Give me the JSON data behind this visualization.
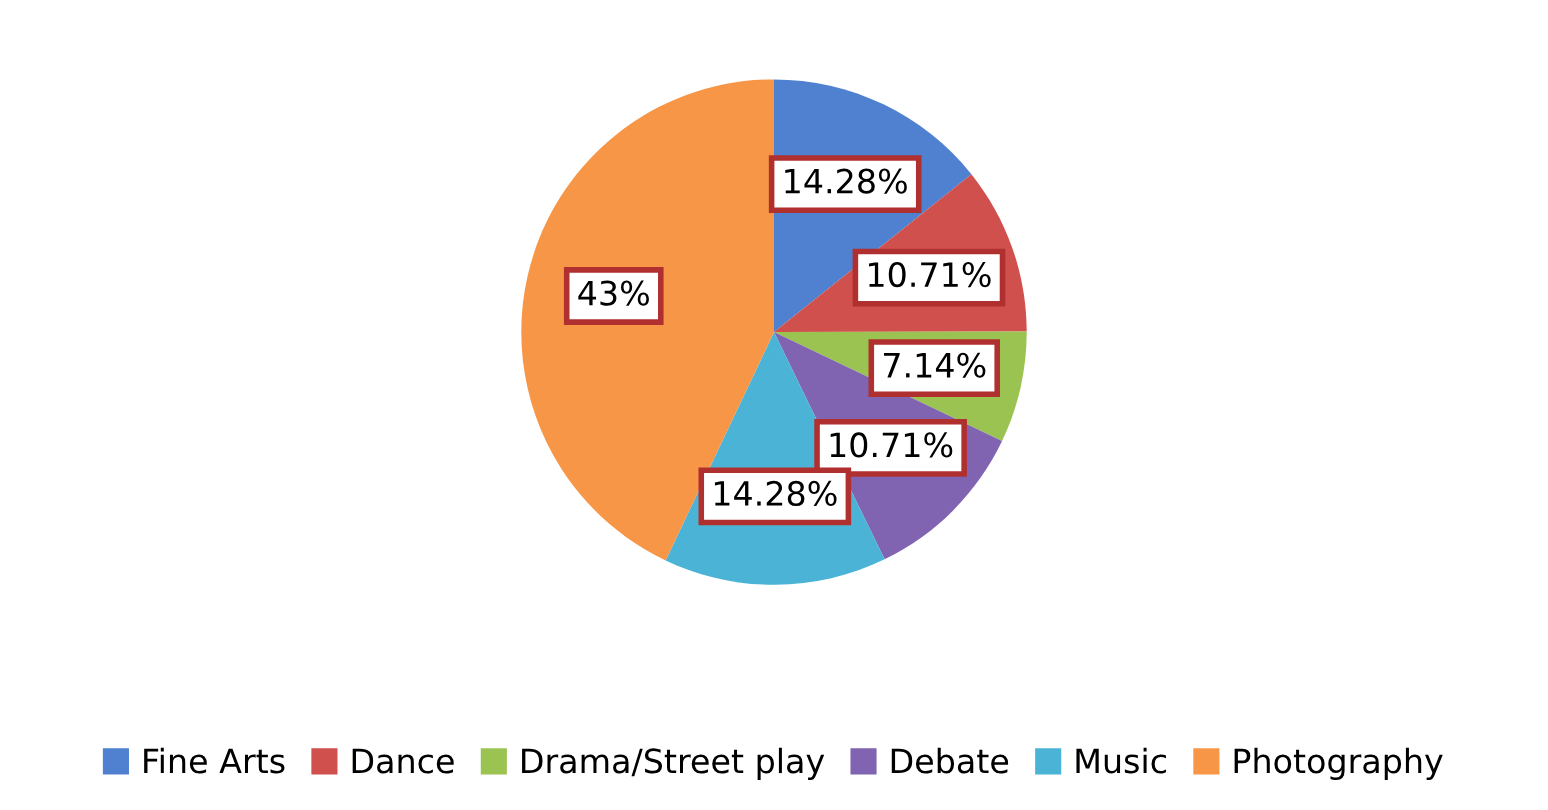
{
  "chart_data": {
    "type": "pie",
    "categories": [
      "Fine Arts",
      "Dance",
      "Drama/Street play",
      "Debate",
      "Music",
      "Photography"
    ],
    "values": [
      14.28,
      10.71,
      7.14,
      10.71,
      14.28,
      43
    ],
    "value_labels": [
      "14.28%",
      "10.71%",
      "7.14%",
      "10.71%",
      "14.28%",
      "43%"
    ],
    "colors": [
      "#4f81d0",
      "#d0504d",
      "#9bc351",
      "#8064b2",
      "#4bb4d6",
      "#f79646"
    ],
    "legend": "bottom"
  }
}
